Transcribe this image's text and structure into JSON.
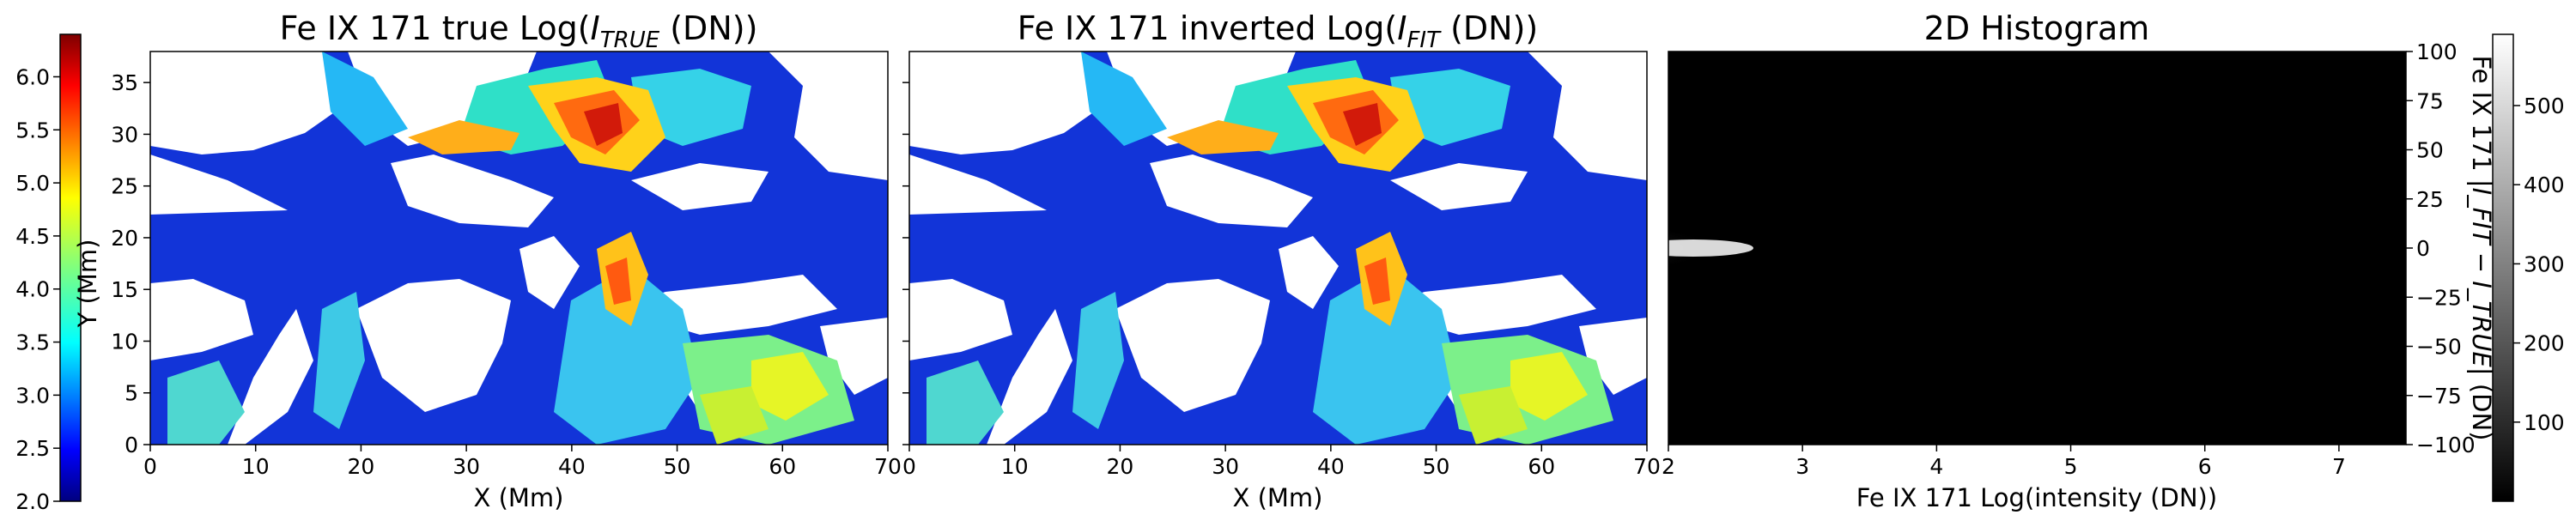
{
  "colors": {
    "jet": [
      "#00007f",
      "#0000ff",
      "#007fff",
      "#00ffff",
      "#7fff7f",
      "#ffff00",
      "#ff7f00",
      "#ff0000",
      "#7f0000"
    ],
    "gray": [
      "#000000",
      "#ffffff"
    ],
    "nodata": "#ffffff"
  },
  "left_colorbar": {
    "label": "Y (Mm)",
    "range": [
      2.0,
      6.4
    ],
    "ticks": [
      "2.0",
      "2.5",
      "3.0",
      "3.5",
      "4.0",
      "4.5",
      "5.0",
      "5.5",
      "6.0"
    ],
    "colormap": "jet"
  },
  "right_colorbar": {
    "range": [
      0,
      590
    ],
    "ticks": [
      "100",
      "200",
      "300",
      "400",
      "500"
    ],
    "colormap": "gray"
  },
  "chart_data": [
    {
      "type": "heatmap",
      "title_main": "Fe IX 171   true Log(",
      "title_sub": "TRUE",
      "title_tail": " (DN))",
      "xlabel": "X (Mm)",
      "xlim": [
        0,
        70
      ],
      "ylim": [
        0,
        38
      ],
      "xticks": [
        "0",
        "10",
        "20",
        "30",
        "40",
        "50",
        "60",
        "70"
      ],
      "yticks": [
        "0",
        "5",
        "10",
        "15",
        "20",
        "25",
        "30",
        "35"
      ],
      "colormap": "jet",
      "value_range": [
        2.0,
        6.4
      ]
    },
    {
      "type": "heatmap",
      "title_main": "Fe IX 171  inverted Log(",
      "title_sub": "FIT",
      "title_tail": " (DN))",
      "xlabel": "X (Mm)",
      "xlim": [
        0,
        70
      ],
      "ylim": [
        0,
        38
      ],
      "xticks": [
        "0",
        "10",
        "20",
        "30",
        "40",
        "50",
        "60",
        "70"
      ],
      "colormap": "jet",
      "value_range": [
        2.0,
        6.4
      ]
    },
    {
      "type": "heatmap",
      "title": "2D Histogram",
      "xlabel": "Fe IX 171 Log(intensity (DN))",
      "ylabel_main": "Fe IX 171  |",
      "ylabel_expr": "I_FIT − I_TRUE",
      "ylabel_tail": "| (DN)",
      "xlim": [
        2,
        7.5
      ],
      "ylim": [
        -100,
        100
      ],
      "xticks": [
        "2",
        "3",
        "4",
        "5",
        "6",
        "7"
      ],
      "yticks": [
        "100",
        "75",
        "50",
        "25",
        "0",
        "−25",
        "−50",
        "−75",
        "−100"
      ],
      "colormap": "gray",
      "peak": {
        "x": 2.2,
        "y": 0,
        "count": 580
      }
    }
  ]
}
